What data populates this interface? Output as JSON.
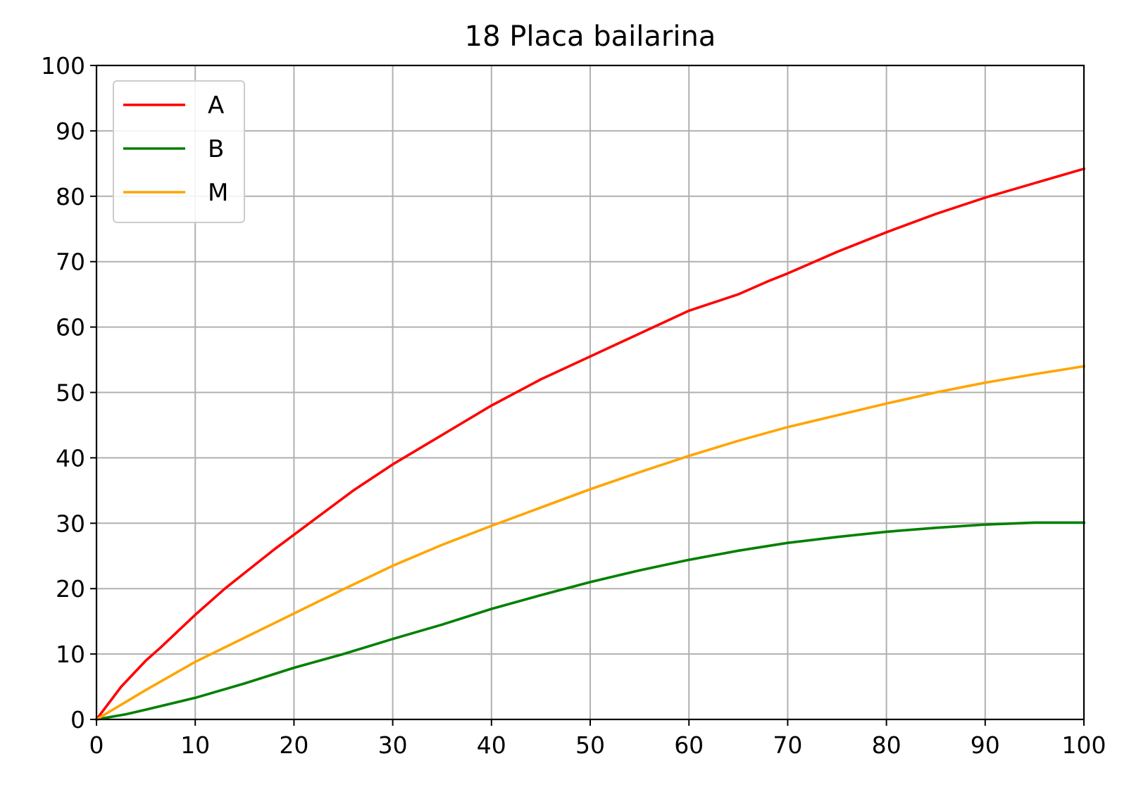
{
  "chart_data": {
    "type": "line",
    "title": "18 Placa bailarina",
    "xlabel": "",
    "ylabel": "",
    "xlim": [
      0,
      100
    ],
    "ylim": [
      0,
      100
    ],
    "xticks": [
      0,
      10,
      20,
      30,
      40,
      50,
      60,
      70,
      80,
      90,
      100
    ],
    "yticks": [
      0,
      10,
      20,
      30,
      40,
      50,
      60,
      70,
      80,
      90,
      100
    ],
    "grid": true,
    "legend_position": "top-left",
    "series": [
      {
        "name": "A",
        "color": "#ff0000",
        "x": [
          0,
          2.5,
          5,
          6.5,
          10,
          13,
          18,
          22,
          26,
          30,
          35,
          40,
          45,
          50,
          55,
          60,
          62,
          65,
          68,
          70,
          75,
          80,
          85,
          90,
          95,
          100
        ],
        "y": [
          0,
          5,
          9,
          11,
          16,
          20,
          26,
          30.5,
          35,
          39,
          43.5,
          48,
          52,
          55.5,
          59,
          62.5,
          63.5,
          65,
          67,
          68.2,
          71.5,
          74.5,
          77.3,
          79.8,
          82,
          84.2
        ]
      },
      {
        "name": "B",
        "color": "#008000",
        "x": [
          0,
          3,
          5,
          10,
          15,
          20,
          25,
          30,
          35,
          40,
          45,
          50,
          55,
          60,
          65,
          70,
          75,
          80,
          85,
          90,
          95,
          100
        ],
        "y": [
          0,
          0.8,
          1.5,
          3.3,
          5.5,
          7.9,
          10,
          12.3,
          14.5,
          16.9,
          19,
          21,
          22.8,
          24.4,
          25.8,
          27,
          27.9,
          28.7,
          29.3,
          29.8,
          30.1,
          30.1
        ]
      },
      {
        "name": "M",
        "color": "#ffa500",
        "x": [
          0,
          5,
          10,
          15,
          20,
          25,
          30,
          35,
          40,
          45,
          50,
          55,
          60,
          65,
          70,
          75,
          80,
          85,
          90,
          95,
          100
        ],
        "y": [
          0,
          4.5,
          8.8,
          12.5,
          16.2,
          19.9,
          23.5,
          26.7,
          29.6,
          32.4,
          35.2,
          37.8,
          40.3,
          42.6,
          44.7,
          46.5,
          48.3,
          50,
          51.5,
          52.8,
          54
        ]
      }
    ]
  }
}
